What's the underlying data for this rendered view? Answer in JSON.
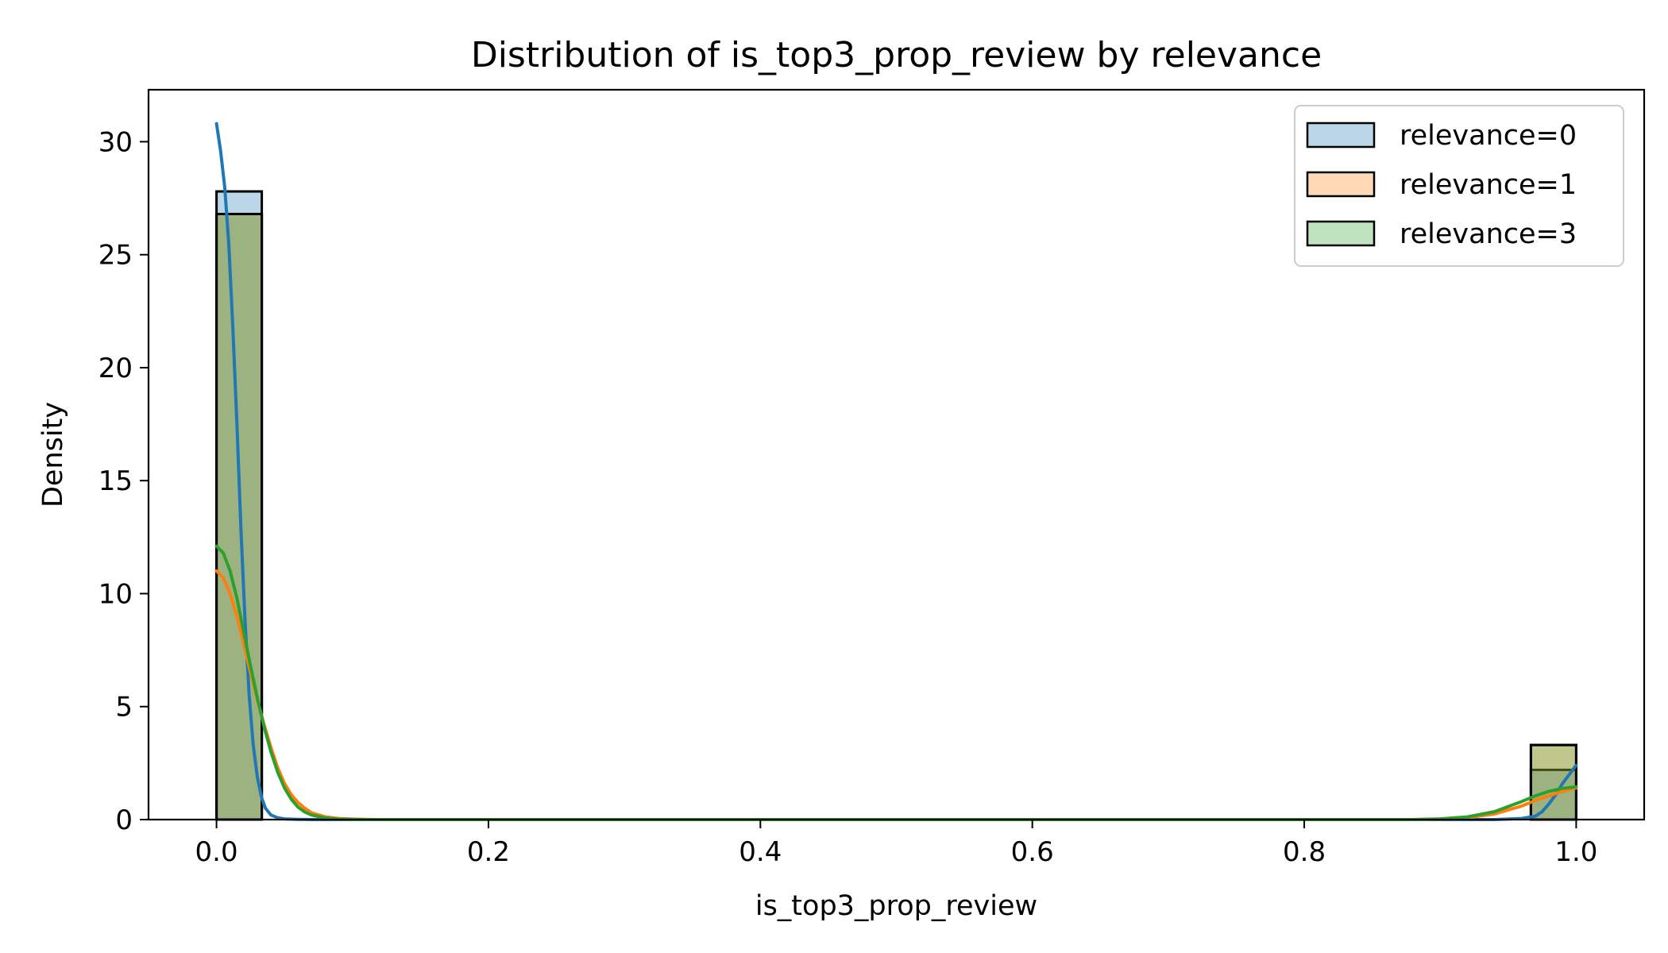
{
  "chart_data": {
    "type": "bar",
    "title": "Distribution of is_top3_prop_review by relevance",
    "xlabel": "is_top3_prop_review",
    "ylabel": "Density",
    "xlim": [
      -0.05,
      1.05
    ],
    "ylim": [
      0,
      32.3
    ],
    "xticks": [
      0.0,
      0.2,
      0.4,
      0.6,
      0.8,
      1.0
    ],
    "xtick_labels": [
      "0.0",
      "0.2",
      "0.4",
      "0.6",
      "0.8",
      "1.0"
    ],
    "yticks": [
      0,
      5,
      10,
      15,
      20,
      25,
      30
    ],
    "ytick_labels": [
      "0",
      "5",
      "10",
      "15",
      "20",
      "25",
      "30"
    ],
    "grid": false,
    "legend_position": "top-right",
    "bin_edges": [
      0.0,
      0.0333,
      0.9667,
      1.0
    ],
    "series": [
      {
        "name": "relevance=0",
        "color": "#1f77b4",
        "bins": [
          {
            "x0": 0.0,
            "x1": 0.0333,
            "density": 27.8
          },
          {
            "x0": 0.9667,
            "x1": 1.0,
            "density": 2.2
          }
        ],
        "kde": {
          "x": [
            0.0,
            0.003,
            0.006,
            0.009,
            0.012,
            0.015,
            0.018,
            0.021,
            0.024,
            0.027,
            0.03,
            0.033,
            0.036,
            0.04,
            0.045,
            0.05,
            0.06,
            0.07,
            0.1,
            0.5,
            0.9,
            0.94,
            0.96,
            0.97,
            0.975,
            0.98,
            0.985,
            0.99,
            0.995,
            1.0
          ],
          "y": [
            30.8,
            29.6,
            28.0,
            25.5,
            21.8,
            17.5,
            12.8,
            8.8,
            5.5,
            3.3,
            1.9,
            1.0,
            0.5,
            0.2,
            0.08,
            0.03,
            0.01,
            0.0,
            0.0,
            0.0,
            0.0,
            0.0,
            0.05,
            0.15,
            0.35,
            0.7,
            1.1,
            1.6,
            2.0,
            2.4
          ]
        }
      },
      {
        "name": "relevance=1",
        "color": "#ff7f0e",
        "bins": [
          {
            "x0": 0.0,
            "x1": 0.0333,
            "density": 26.8
          },
          {
            "x0": 0.9667,
            "x1": 1.0,
            "density": 3.3
          }
        ],
        "kde": {
          "x": [
            0.0,
            0.005,
            0.01,
            0.015,
            0.02,
            0.025,
            0.03,
            0.035,
            0.04,
            0.045,
            0.05,
            0.055,
            0.06,
            0.065,
            0.07,
            0.08,
            0.09,
            0.1,
            0.11,
            0.12,
            0.5,
            0.88,
            0.9,
            0.92,
            0.94,
            0.96,
            0.97,
            0.98,
            0.99,
            1.0
          ],
          "y": [
            11.0,
            10.7,
            10.0,
            9.0,
            7.8,
            6.5,
            5.3,
            4.2,
            3.2,
            2.3,
            1.6,
            1.1,
            0.75,
            0.5,
            0.3,
            0.12,
            0.05,
            0.02,
            0.01,
            0.0,
            0.0,
            0.0,
            0.02,
            0.08,
            0.25,
            0.6,
            0.85,
            1.05,
            1.25,
            1.4
          ]
        }
      },
      {
        "name": "relevance=3",
        "color": "#2ca02c",
        "bins": [
          {
            "x0": 0.0,
            "x1": 0.0333,
            "density": 26.8
          },
          {
            "x0": 0.9667,
            "x1": 1.0,
            "density": 3.3
          }
        ],
        "kde": {
          "x": [
            0.0,
            0.005,
            0.01,
            0.015,
            0.02,
            0.025,
            0.03,
            0.035,
            0.04,
            0.045,
            0.05,
            0.055,
            0.06,
            0.065,
            0.07,
            0.08,
            0.09,
            0.1,
            0.11,
            0.5,
            0.88,
            0.9,
            0.92,
            0.94,
            0.96,
            0.97,
            0.98,
            0.99,
            1.0
          ],
          "y": [
            12.1,
            11.8,
            11.0,
            9.8,
            8.3,
            6.8,
            5.4,
            4.1,
            3.0,
            2.1,
            1.4,
            0.9,
            0.55,
            0.33,
            0.2,
            0.07,
            0.02,
            0.01,
            0.0,
            0.0,
            0.0,
            0.03,
            0.12,
            0.35,
            0.8,
            1.05,
            1.25,
            1.38,
            1.45
          ]
        }
      }
    ]
  }
}
